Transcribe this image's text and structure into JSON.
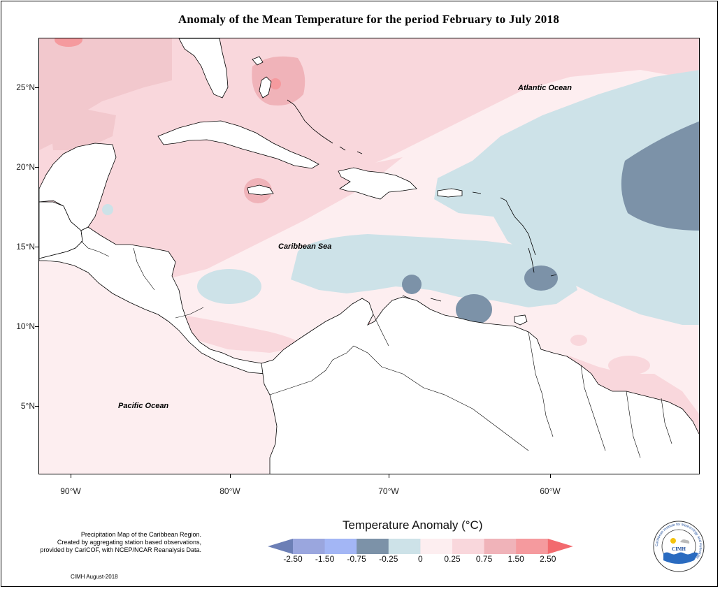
{
  "title": "Anomaly of the Mean Temperature for the period February to July 2018",
  "map": {
    "ocean_labels": {
      "atlantic": "Atlantic Ocean",
      "caribbean": "Caribbean Sea",
      "pacific": "Pacific Ocean"
    },
    "latitude_ticks": [
      "25°N",
      "20°N",
      "15°N",
      "10°N",
      "5°N"
    ],
    "longitude_ticks": [
      "90°W",
      "80°W",
      "70°W",
      "60°W"
    ]
  },
  "legend": {
    "title": "Temperature Anomaly (°C)",
    "breaks": [
      "-2.50",
      "-1.50",
      "-0.75",
      "-0.25",
      "0",
      "0.25",
      "0.75",
      "1.50",
      "2.50"
    ],
    "colors": [
      "#6c7fb6",
      "#9aa6de",
      "#a3b6f5",
      "#7c92a8",
      "#cde2e8",
      "#fdeef0",
      "#f9d7dc",
      "#f0b3b9",
      "#f59a9e",
      "#f26a6e"
    ]
  },
  "notes": {
    "line1": "Precipitation Map of the Caribbean Region.",
    "line2": "Created by aggregating station based observations,",
    "line3": "provided by CariCOF, with NCEP/NCAR Reanalysis Data.",
    "credit": "CIMH August-2018"
  },
  "logo": {
    "ring_text": "Caribbean Institute for Meteorology and Hydrology",
    "abbreviation": "CIMH"
  }
}
